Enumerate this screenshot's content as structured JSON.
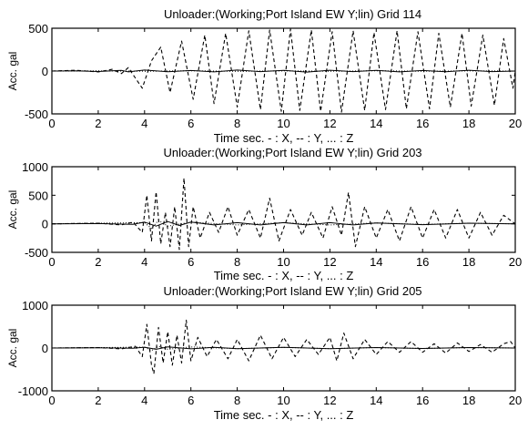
{
  "chart_data": [
    {
      "type": "line",
      "title": "Unloader:(Working;Port Island EW Y;lin)   Grid 114",
      "xlabel": "Time  sec.  - : X, -- : Y, ... : Z",
      "ylabel": "Acc. gal",
      "xlim": [
        0,
        20
      ],
      "ylim": [
        -500,
        500
      ],
      "xticks": [
        "0",
        "2",
        "4",
        "6",
        "8",
        "10",
        "12",
        "14",
        "16",
        "18",
        "20"
      ],
      "yticks": [
        "500",
        "0",
        "-500"
      ],
      "series": [
        {
          "style": "solid",
          "x": [
            0,
            1,
            2,
            3,
            3.3,
            4,
            5,
            6,
            7,
            8,
            9,
            10,
            11,
            12,
            13,
            14,
            15,
            16,
            17,
            18,
            19,
            20
          ],
          "y": [
            0,
            3,
            -5,
            8,
            -10,
            12,
            -8,
            6,
            -10,
            12,
            -6,
            8,
            -12,
            10,
            -6,
            8,
            -10,
            6,
            -8,
            10,
            -6,
            0
          ]
        },
        {
          "style": "dash",
          "x": [
            0,
            1,
            2,
            2.6,
            3,
            3.3,
            3.6,
            3.9,
            4.3,
            4.7,
            5.1,
            5.6,
            6.1,
            6.6,
            7.0,
            7.5,
            8.0,
            8.5,
            9.0,
            9.4,
            9.9,
            10.3,
            10.7,
            11.2,
            11.6,
            12.1,
            12.5,
            13.0,
            13.5,
            13.9,
            14.4,
            14.9,
            15.3,
            15.8,
            16.3,
            16.7,
            17.2,
            17.7,
            18.1,
            18.6,
            19.1,
            19.5,
            19.9,
            20
          ],
          "y": [
            0,
            10,
            -10,
            20,
            -30,
            40,
            -80,
            -200,
            120,
            280,
            -250,
            350,
            -330,
            420,
            -380,
            440,
            -420,
            470,
            -450,
            480,
            -470,
            490,
            -460,
            480,
            -470,
            460,
            -480,
            470,
            -460,
            450,
            -450,
            470,
            -440,
            460,
            -440,
            440,
            -420,
            440,
            -410,
            420,
            -400,
            380,
            -200,
            0
          ]
        },
        {
          "style": "dot",
          "x": [
            0,
            2,
            4,
            6,
            8,
            10,
            12,
            14,
            16,
            18,
            20
          ],
          "y": [
            0,
            2,
            -2,
            3,
            -3,
            2,
            -2,
            3,
            -2,
            2,
            0
          ]
        }
      ]
    },
    {
      "type": "line",
      "title": "Unloader:(Working;Port Island EW Y;lin)   Grid 203",
      "xlabel": "Time  sec.  - : X, -- : Y, ... : Z",
      "ylabel": "Acc. gal",
      "xlim": [
        0,
        20
      ],
      "ylim": [
        -500,
        1000
      ],
      "xticks": [
        "0",
        "2",
        "4",
        "6",
        "8",
        "10",
        "12",
        "14",
        "16",
        "18",
        "20"
      ],
      "yticks": [
        "1000",
        "500",
        "0",
        "-500"
      ],
      "series": [
        {
          "style": "solid",
          "x": [
            0,
            2,
            3.5,
            4,
            4.5,
            5,
            5.5,
            6,
            7,
            8,
            9,
            10,
            11,
            12,
            13,
            14,
            16,
            18,
            20
          ],
          "y": [
            0,
            5,
            -10,
            30,
            -40,
            40,
            -30,
            30,
            -20,
            20,
            -20,
            20,
            -20,
            20,
            -20,
            15,
            -15,
            10,
            0
          ]
        },
        {
          "style": "dash",
          "x": [
            0,
            2,
            3,
            3.5,
            3.9,
            4.1,
            4.3,
            4.5,
            4.7,
            4.9,
            5.1,
            5.3,
            5.5,
            5.7,
            5.9,
            6.1,
            6.4,
            6.8,
            7.2,
            7.6,
            8.0,
            8.5,
            9.0,
            9.4,
            9.8,
            10.3,
            10.8,
            11.2,
            11.7,
            12.1,
            12.5,
            12.8,
            13.1,
            13.5,
            14.0,
            14.5,
            15.0,
            15.5,
            16.0,
            16.5,
            17.0,
            17.5,
            18.0,
            18.5,
            19.0,
            19.5,
            20
          ],
          "y": [
            0,
            10,
            -20,
            30,
            -150,
            500,
            -300,
            560,
            -350,
            200,
            -400,
            300,
            -450,
            800,
            -400,
            300,
            -250,
            200,
            -150,
            300,
            -200,
            250,
            -250,
            450,
            -300,
            250,
            -200,
            200,
            -250,
            300,
            -200,
            550,
            -400,
            300,
            -250,
            250,
            -300,
            300,
            -250,
            250,
            -250,
            250,
            -250,
            200,
            -200,
            150,
            0
          ]
        },
        {
          "style": "dot",
          "x": [
            0,
            4,
            4.3,
            4.6,
            5,
            6,
            8,
            10,
            12,
            14,
            16,
            18,
            20
          ],
          "y": [
            0,
            20,
            -80,
            60,
            -40,
            30,
            -20,
            20,
            -20,
            15,
            -10,
            10,
            0
          ]
        }
      ]
    },
    {
      "type": "line",
      "title": "Unloader:(Working;Port Island EW Y;lin)   Grid 205",
      "xlabel": "Time  sec.  - : X, -- : Y, ... : Z",
      "ylabel": "Acc. gal",
      "xlim": [
        0,
        20
      ],
      "ylim": [
        -1000,
        1000
      ],
      "xticks": [
        "0",
        "2",
        "4",
        "6",
        "8",
        "10",
        "12",
        "14",
        "16",
        "18",
        "20"
      ],
      "yticks": [
        "1000",
        "0",
        "-1000"
      ],
      "series": [
        {
          "style": "solid",
          "x": [
            0,
            2,
            3.5,
            4,
            4.5,
            5,
            6,
            7,
            8,
            10,
            12,
            14,
            16,
            18,
            20
          ],
          "y": [
            0,
            5,
            -5,
            20,
            -30,
            25,
            -20,
            15,
            -15,
            15,
            -15,
            10,
            -10,
            10,
            0
          ]
        },
        {
          "style": "dash",
          "x": [
            0,
            2,
            3,
            3.6,
            3.9,
            4.1,
            4.3,
            4.4,
            4.6,
            4.8,
            5.0,
            5.2,
            5.4,
            5.6,
            5.8,
            6.0,
            6.3,
            6.7,
            7.1,
            7.6,
            8.0,
            8.5,
            9.0,
            9.5,
            10.0,
            10.5,
            11.0,
            11.5,
            12.0,
            12.3,
            12.6,
            13.0,
            13.5,
            14.0,
            14.5,
            15.0,
            15.5,
            16.0,
            16.5,
            17.0,
            17.5,
            18.0,
            18.5,
            19.0,
            19.5,
            19.8,
            20
          ],
          "y": [
            0,
            10,
            -20,
            40,
            -200,
            550,
            -400,
            -600,
            480,
            -350,
            380,
            -400,
            300,
            -350,
            650,
            -300,
            250,
            -200,
            200,
            -250,
            200,
            -300,
            300,
            -250,
            250,
            -200,
            200,
            -150,
            250,
            -300,
            350,
            -250,
            200,
            -150,
            150,
            -100,
            150,
            -100,
            100,
            -120,
            120,
            -80,
            80,
            -100,
            100,
            150,
            0
          ]
        },
        {
          "style": "dot",
          "x": [
            0,
            4,
            4.3,
            4.6,
            5,
            6,
            8,
            10,
            12,
            14,
            16,
            18,
            20
          ],
          "y": [
            0,
            20,
            -60,
            40,
            -30,
            25,
            -15,
            15,
            -15,
            10,
            -10,
            10,
            0
          ]
        }
      ]
    }
  ]
}
